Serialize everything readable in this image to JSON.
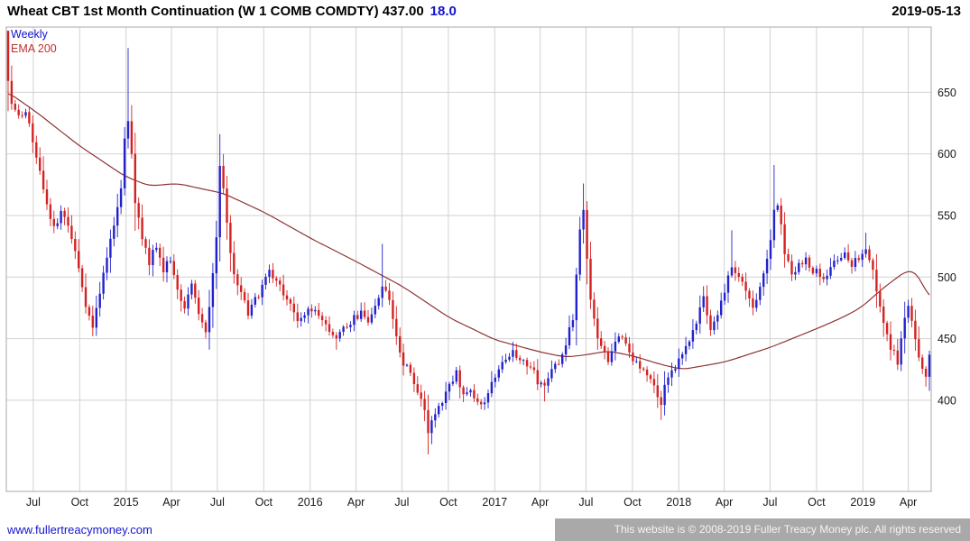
{
  "header": {
    "title": "Wheat CBT 1st Month Continuation (W 1 COMB COMDTY) 437.00",
    "change": "18.0",
    "date": "2019-05-13"
  },
  "legend": {
    "timeframe": "Weekly",
    "ema": "EMA 200"
  },
  "footer": {
    "site": "www.fullertreacymoney.com",
    "copyright": "This website is © 2008-2019 Fuller Treacy Money plc. All rights reserved"
  },
  "chart_data": {
    "type": "candlestick",
    "title": "Wheat CBT 1st Month Continuation (W 1 COMB COMDTY)",
    "last_price": 437.0,
    "change": 18.0,
    "as_of_date": "2019-05-13",
    "timeframe": "Weekly",
    "overlay": "EMA 200",
    "grid": true,
    "legend_position": "top-left",
    "y_axis": {
      "min": 326,
      "max": 703,
      "ticks": [
        650,
        600,
        550,
        500,
        450,
        400
      ],
      "side": "right"
    },
    "x_axis": {
      "start_date": "2014-05-12",
      "weeks": 262,
      "ticks": [
        {
          "label": "Jul",
          "date": "2014-07-01"
        },
        {
          "label": "Oct",
          "date": "2014-10-01"
        },
        {
          "label": "2015",
          "date": "2015-01-01"
        },
        {
          "label": "Apr",
          "date": "2015-04-01"
        },
        {
          "label": "Jul",
          "date": "2015-07-01"
        },
        {
          "label": "Oct",
          "date": "2015-10-01"
        },
        {
          "label": "2016",
          "date": "2016-01-01"
        },
        {
          "label": "Apr",
          "date": "2016-04-01"
        },
        {
          "label": "Jul",
          "date": "2016-07-01"
        },
        {
          "label": "Oct",
          "date": "2016-10-01"
        },
        {
          "label": "2017",
          "date": "2017-01-01"
        },
        {
          "label": "Apr",
          "date": "2017-04-01"
        },
        {
          "label": "Jul",
          "date": "2017-07-01"
        },
        {
          "label": "Oct",
          "date": "2017-10-01"
        },
        {
          "label": "2018",
          "date": "2018-01-01"
        },
        {
          "label": "Apr",
          "date": "2018-04-01"
        },
        {
          "label": "Jul",
          "date": "2018-07-01"
        },
        {
          "label": "Oct",
          "date": "2018-10-01"
        },
        {
          "label": "2019",
          "date": "2019-01-01"
        },
        {
          "label": "Apr",
          "date": "2019-04-01"
        }
      ]
    },
    "colors": {
      "up": "#2222cc",
      "down": "#d42222",
      "ema": "#8e3434",
      "grid": "#d2d2d2",
      "border": "#aaaaaa",
      "axis_text": "#1a1a1a"
    },
    "series": [
      {
        "name": "W 1 COMB COMDTY weekly candles",
        "type": "candlestick",
        "first_open": 700,
        "jitter": 7,
        "final_close": 437,
        "close_anchors": [
          [
            0,
            662
          ],
          [
            1,
            640
          ],
          [
            3,
            628
          ],
          [
            5,
            636
          ],
          [
            7,
            610
          ],
          [
            9,
            585
          ],
          [
            11,
            560
          ],
          [
            13,
            538
          ],
          [
            15,
            552
          ],
          [
            17,
            545
          ],
          [
            19,
            522
          ],
          [
            21,
            490
          ],
          [
            23,
            468
          ],
          [
            24,
            458
          ],
          [
            26,
            488
          ],
          [
            28,
            515
          ],
          [
            30,
            542
          ],
          [
            32,
            575
          ],
          [
            33,
            612
          ],
          [
            34,
            628
          ],
          [
            35,
            600
          ],
          [
            36,
            562
          ],
          [
            38,
            532
          ],
          [
            40,
            512
          ],
          [
            42,
            526
          ],
          [
            44,
            504
          ],
          [
            46,
            516
          ],
          [
            48,
            490
          ],
          [
            50,
            477
          ],
          [
            52,
            496
          ],
          [
            54,
            472
          ],
          [
            56,
            458
          ],
          [
            57,
            476
          ],
          [
            58,
            503
          ],
          [
            59,
            532
          ],
          [
            60,
            588
          ],
          [
            61,
            574
          ],
          [
            62,
            541
          ],
          [
            63,
            519
          ],
          [
            64,
            501
          ],
          [
            66,
            489
          ],
          [
            68,
            470
          ],
          [
            70,
            482
          ],
          [
            72,
            492
          ],
          [
            74,
            506
          ],
          [
            76,
            494
          ],
          [
            79,
            484
          ],
          [
            81,
            470
          ],
          [
            83,
            464
          ],
          [
            85,
            471
          ],
          [
            87,
            476
          ],
          [
            89,
            464
          ],
          [
            91,
            455
          ],
          [
            93,
            449
          ],
          [
            96,
            461
          ],
          [
            98,
            466
          ],
          [
            100,
            471
          ],
          [
            102,
            464
          ],
          [
            104,
            478
          ],
          [
            106,
            492
          ],
          [
            108,
            480
          ],
          [
            110,
            452
          ],
          [
            112,
            431
          ],
          [
            114,
            421
          ],
          [
            116,
            409
          ],
          [
            118,
            394
          ],
          [
            119,
            373
          ],
          [
            121,
            390
          ],
          [
            123,
            401
          ],
          [
            125,
            411
          ],
          [
            127,
            421
          ],
          [
            129,
            406
          ],
          [
            131,
            411
          ],
          [
            133,
            396
          ],
          [
            135,
            401
          ],
          [
            137,
            414
          ],
          [
            139,
            426
          ],
          [
            141,
            436
          ],
          [
            143,
            441
          ],
          [
            146,
            431
          ],
          [
            148,
            426
          ],
          [
            150,
            416
          ],
          [
            152,
            409
          ],
          [
            154,
            424
          ],
          [
            156,
            431
          ],
          [
            158,
            446
          ],
          [
            160,
            468
          ],
          [
            161,
            502
          ],
          [
            162,
            541
          ],
          [
            163,
            556
          ],
          [
            164,
            512
          ],
          [
            165,
            483
          ],
          [
            166,
            466
          ],
          [
            168,
            441
          ],
          [
            170,
            431
          ],
          [
            172,
            446
          ],
          [
            174,
            451
          ],
          [
            176,
            436
          ],
          [
            178,
            431
          ],
          [
            180,
            426
          ],
          [
            182,
            416
          ],
          [
            185,
            399
          ],
          [
            187,
            421
          ],
          [
            189,
            426
          ],
          [
            191,
            436
          ],
          [
            193,
            451
          ],
          [
            195,
            461
          ],
          [
            197,
            486
          ],
          [
            199,
            457
          ],
          [
            201,
            471
          ],
          [
            203,
            486
          ],
          [
            205,
            511
          ],
          [
            207,
            501
          ],
          [
            209,
            491
          ],
          [
            211,
            476
          ],
          [
            213,
            491
          ],
          [
            215,
            516
          ],
          [
            216,
            531
          ],
          [
            217,
            556
          ],
          [
            218,
            561
          ],
          [
            219,
            541
          ],
          [
            220,
            521
          ],
          [
            222,
            501
          ],
          [
            224,
            511
          ],
          [
            226,
            516
          ],
          [
            228,
            506
          ],
          [
            231,
            501
          ],
          [
            233,
            506
          ],
          [
            235,
            516
          ],
          [
            237,
            521
          ],
          [
            239,
            511
          ],
          [
            241,
            516
          ],
          [
            243,
            521
          ],
          [
            245,
            507
          ],
          [
            246,
            488
          ],
          [
            248,
            462
          ],
          [
            250,
            442
          ],
          [
            252,
            432
          ],
          [
            253,
            452
          ],
          [
            254,
            468
          ],
          [
            255,
            477
          ],
          [
            256,
            462
          ],
          [
            257,
            449
          ],
          [
            258,
            437
          ],
          [
            259,
            428
          ],
          [
            260,
            421
          ],
          [
            261,
            437
          ]
        ],
        "spike_highs": [
          [
            34,
            686
          ],
          [
            60,
            616
          ],
          [
            106,
            527
          ],
          [
            163,
            576
          ],
          [
            205,
            538
          ],
          [
            217,
            591
          ],
          [
            243,
            536
          ]
        ],
        "spike_lows": [
          [
            24,
            452
          ],
          [
            93,
            441
          ],
          [
            119,
            356
          ],
          [
            152,
            399
          ],
          [
            185,
            384
          ],
          [
            260,
            411
          ],
          [
            261,
            414
          ]
        ]
      },
      {
        "name": "EMA 200",
        "type": "line",
        "anchors": [
          [
            0,
            650
          ],
          [
            8,
            634
          ],
          [
            20,
            607
          ],
          [
            33,
            582
          ],
          [
            40,
            574
          ],
          [
            48,
            576
          ],
          [
            56,
            571
          ],
          [
            61,
            568
          ],
          [
            73,
            552
          ],
          [
            86,
            531
          ],
          [
            99,
            512
          ],
          [
            112,
            492
          ],
          [
            125,
            467
          ],
          [
            138,
            449
          ],
          [
            151,
            439
          ],
          [
            158,
            435
          ],
          [
            164,
            437
          ],
          [
            170,
            440
          ],
          [
            177,
            436
          ],
          [
            185,
            429
          ],
          [
            191,
            425
          ],
          [
            203,
            431
          ],
          [
            216,
            443
          ],
          [
            229,
            458
          ],
          [
            237,
            468
          ],
          [
            242,
            476
          ],
          [
            247,
            489
          ],
          [
            252,
            500
          ],
          [
            255,
            506
          ],
          [
            257,
            505
          ],
          [
            259,
            496
          ],
          [
            261,
            481
          ]
        ]
      }
    ]
  }
}
